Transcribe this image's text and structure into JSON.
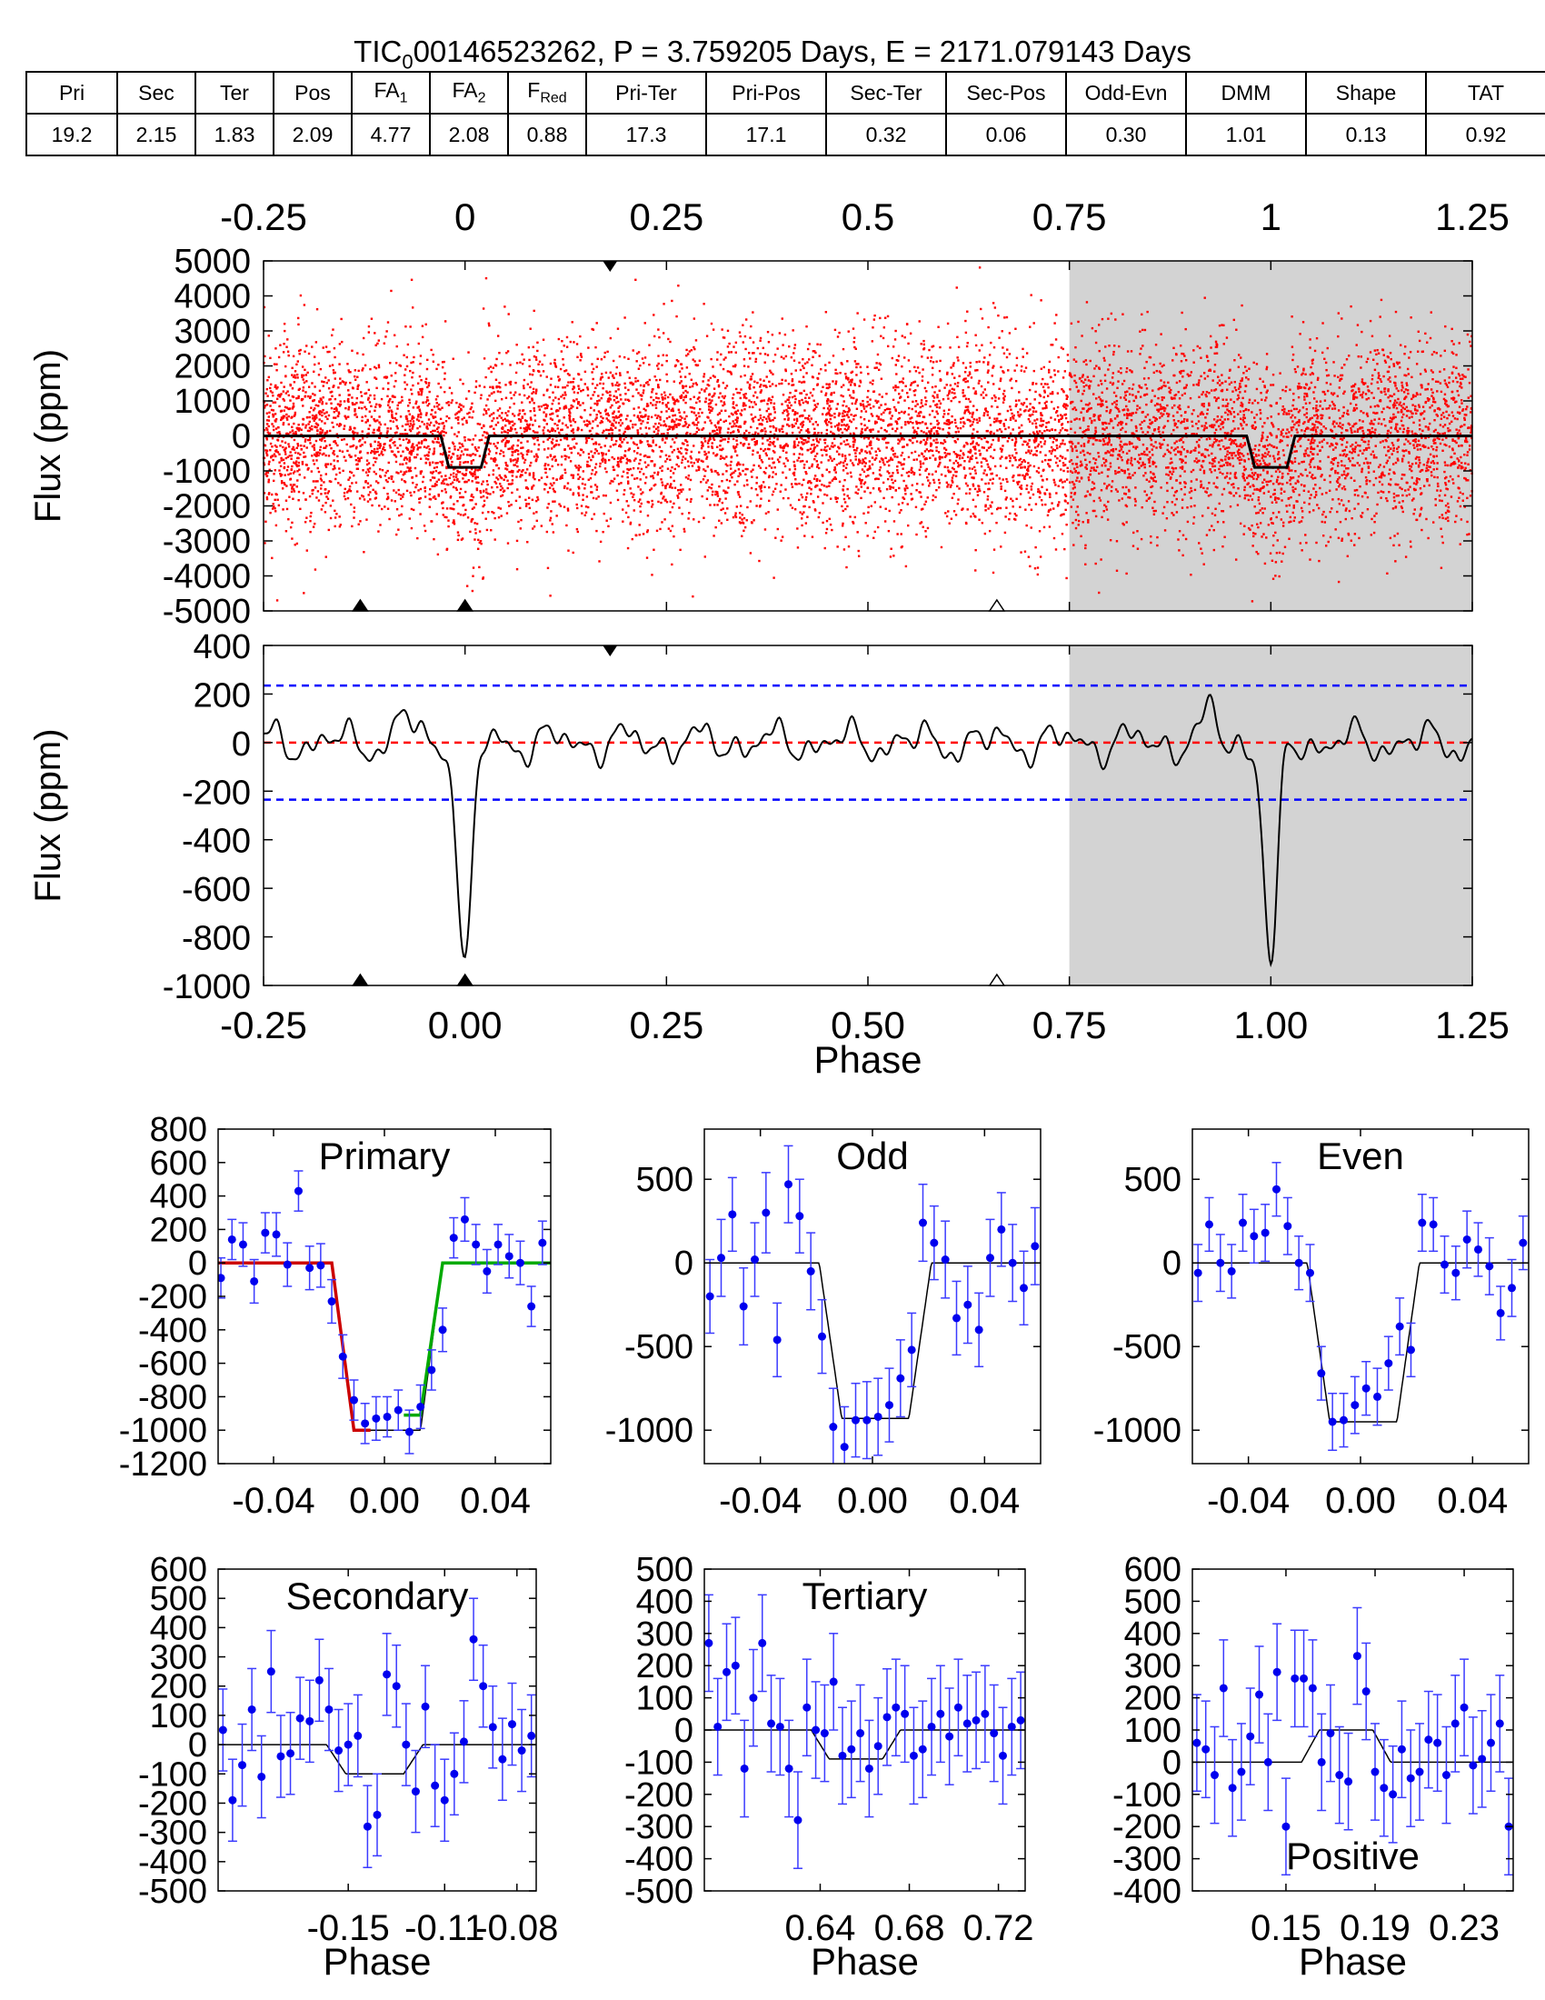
{
  "title": {
    "prefix": "TIC",
    "sub": "0",
    "rest": "00146523262, P = 3.759205 Days, E = 2171.079143 Days"
  },
  "metrics": {
    "headers": [
      {
        "main": "Pri",
        "sub": ""
      },
      {
        "main": "Sec",
        "sub": ""
      },
      {
        "main": "Ter",
        "sub": ""
      },
      {
        "main": "Pos",
        "sub": ""
      },
      {
        "main": "FA",
        "sub": "1"
      },
      {
        "main": "FA",
        "sub": "2"
      },
      {
        "main": "F",
        "sub": "Red"
      },
      {
        "main": "Pri-Ter",
        "sub": ""
      },
      {
        "main": "Pri-Pos",
        "sub": ""
      },
      {
        "main": "Sec-Ter",
        "sub": ""
      },
      {
        "main": "Sec-Pos",
        "sub": ""
      },
      {
        "main": "Odd-Evn",
        "sub": ""
      },
      {
        "main": "DMM",
        "sub": ""
      },
      {
        "main": "Shape",
        "sub": ""
      },
      {
        "main": "TAT",
        "sub": ""
      }
    ],
    "values": [
      "19.2",
      "2.15",
      "1.83",
      "2.09",
      "4.77",
      "2.08",
      "0.88",
      "17.3",
      "17.1",
      "0.32",
      "0.06",
      "0.30",
      "1.01",
      "0.13",
      "0.92"
    ]
  },
  "chart_data": [
    {
      "id": "full-phase",
      "type": "scatter",
      "ylabel": "Flux (ppm)",
      "xlim": [
        -0.25,
        1.25
      ],
      "ylim": [
        -5000,
        5000
      ],
      "top_ticks": [
        "-0.25",
        "0",
        "0.25",
        "0.5",
        "0.75",
        "1",
        "1.25"
      ],
      "top_tick_values": [
        -0.25,
        0,
        0.25,
        0.5,
        0.75,
        1,
        1.25
      ],
      "y_ticks": [
        5000,
        4000,
        3000,
        2000,
        1000,
        0,
        -1000,
        -2000,
        -3000,
        -4000,
        -5000
      ],
      "y_tick_labels": [
        "5000",
        "4000",
        "3000",
        "2000",
        "1000",
        "0",
        "-1000",
        "-2000",
        "-3000",
        "-4000",
        "-5000"
      ],
      "shaded_from": 0.75,
      "transit_depth": -900,
      "transit_center": 0.0,
      "transit_width": 0.06,
      "noise_sigma": 1500,
      "markers_bottom_filled": [
        -0.13,
        0.0
      ],
      "markers_bottom_open": [
        0.66
      ],
      "markers_top_filled": [
        0.18
      ],
      "point_color": "#ff0000",
      "model_color": "#000000"
    },
    {
      "id": "binned-phase",
      "type": "line",
      "xlabel": "Phase",
      "ylabel": "Flux (ppm)",
      "xlim": [
        -0.25,
        1.25
      ],
      "ylim": [
        -1000,
        400
      ],
      "x_ticks": [
        -0.25,
        0,
        0.25,
        0.5,
        0.75,
        1,
        1.25
      ],
      "x_tick_labels": [
        "-0.25",
        "0.00",
        "0.25",
        "0.50",
        "0.75",
        "1.00",
        "1.25"
      ],
      "y_ticks": [
        400,
        200,
        0,
        -200,
        -400,
        -600,
        -800,
        -1000
      ],
      "y_tick_labels": [
        "400",
        "200",
        "0",
        "-200",
        "-400",
        "-600",
        "-800",
        "-1000"
      ],
      "threshold": [
        235,
        -235
      ],
      "zero_line": 0,
      "transit_min": -940,
      "shaded_from": 0.75,
      "markers_bottom_filled": [
        -0.13,
        0.0
      ],
      "markers_bottom_open": [
        0.66
      ],
      "markers_top_filled": [
        0.18
      ]
    },
    {
      "id": "primary",
      "type": "scatter",
      "label": "Primary",
      "xlim": [
        -0.06,
        0.06
      ],
      "ylim": [
        -1200,
        800
      ],
      "x_ticks": [
        -0.04,
        0,
        0.04
      ],
      "x_tick_labels": [
        "-0.04",
        "0.00",
        "0.04"
      ],
      "y_ticks": [
        800,
        600,
        400,
        200,
        0,
        -200,
        -400,
        -600,
        -800,
        -1000,
        -1200
      ],
      "y_tick_labels": [
        "800",
        "600",
        "400",
        "200",
        "0",
        "-200",
        "-400",
        "-600",
        "-800",
        "-1000",
        "-1200"
      ],
      "model": {
        "depth": -1000,
        "t1": -0.019,
        "t2": -0.011,
        "t3": 0.013,
        "t4": 0.021
      },
      "fit_left_color": "#cc0000",
      "fit_right_color": "#00aa00",
      "x": [
        -0.059,
        -0.055,
        -0.051,
        -0.047,
        -0.043,
        -0.039,
        -0.035,
        -0.031,
        -0.027,
        -0.023,
        -0.019,
        -0.015,
        -0.011,
        -0.007,
        -0.003,
        0.001,
        0.005,
        0.009,
        0.013,
        0.017,
        0.021,
        0.025,
        0.029,
        0.033,
        0.037,
        0.041,
        0.045,
        0.049,
        0.053,
        0.057
      ],
      "y": [
        -90,
        140,
        110,
        -110,
        180,
        170,
        -10,
        430,
        -30,
        -15,
        -230,
        -560,
        -820,
        -960,
        -930,
        -920,
        -880,
        -1010,
        -860,
        -640,
        -400,
        150,
        260,
        110,
        -50,
        110,
        40,
        0,
        -260,
        120
      ],
      "err": [
        120,
        120,
        130,
        130,
        120,
        130,
        130,
        120,
        130,
        130,
        130,
        130,
        120,
        120,
        130,
        120,
        120,
        130,
        130,
        120,
        130,
        120,
        130,
        120,
        130,
        120,
        130,
        130,
        120,
        130
      ]
    },
    {
      "id": "odd",
      "type": "scatter",
      "label": "Odd",
      "xlim": [
        -0.06,
        0.06
      ],
      "ylim": [
        -1200,
        800
      ],
      "x_ticks": [
        -0.04,
        0,
        0.04
      ],
      "x_tick_labels": [
        "-0.04",
        "0.00",
        "0.04"
      ],
      "y_ticks": [
        500,
        0,
        -500,
        -1000
      ],
      "y_tick_labels": [
        "500",
        "0",
        "-500",
        "-1000"
      ],
      "model": {
        "depth": -930,
        "t1": -0.019,
        "t2": -0.011,
        "t3": 0.013,
        "t4": 0.021
      },
      "x": [
        -0.058,
        -0.054,
        -0.05,
        -0.046,
        -0.042,
        -0.038,
        -0.034,
        -0.03,
        -0.026,
        -0.022,
        -0.018,
        -0.014,
        -0.01,
        -0.006,
        -0.002,
        0.002,
        0.006,
        0.01,
        0.014,
        0.018,
        0.022,
        0.026,
        0.03,
        0.034,
        0.038,
        0.042,
        0.046,
        0.05,
        0.054,
        0.058
      ],
      "y": [
        -200,
        30,
        290,
        -260,
        20,
        300,
        -460,
        470,
        280,
        -50,
        -440,
        -980,
        -1100,
        -940,
        -940,
        -920,
        -850,
        -690,
        -520,
        240,
        120,
        20,
        -330,
        -250,
        -400,
        30,
        200,
        0,
        -150,
        100
      ],
      "err": [
        220,
        230,
        220,
        230,
        220,
        240,
        220,
        230,
        220,
        230,
        220,
        230,
        240,
        220,
        230,
        230,
        220,
        230,
        220,
        230,
        220,
        230,
        220,
        230,
        220,
        230,
        220,
        230,
        220,
        230
      ]
    },
    {
      "id": "even",
      "type": "scatter",
      "label": "Even",
      "xlim": [
        -0.06,
        0.06
      ],
      "ylim": [
        -1200,
        800
      ],
      "x_ticks": [
        -0.04,
        0,
        0.04
      ],
      "x_tick_labels": [
        "-0.04",
        "0.00",
        "0.04"
      ],
      "y_ticks": [
        500,
        0,
        -500,
        -1000
      ],
      "y_tick_labels": [
        "500",
        "0",
        "-500",
        "-1000"
      ],
      "model": {
        "depth": -950,
        "t1": -0.019,
        "t2": -0.011,
        "t3": 0.013,
        "t4": 0.021
      },
      "x": [
        -0.058,
        -0.054,
        -0.05,
        -0.046,
        -0.042,
        -0.038,
        -0.034,
        -0.03,
        -0.026,
        -0.022,
        -0.018,
        -0.014,
        -0.01,
        -0.006,
        -0.002,
        0.002,
        0.006,
        0.01,
        0.014,
        0.018,
        0.022,
        0.026,
        0.03,
        0.034,
        0.038,
        0.042,
        0.046,
        0.05,
        0.054,
        0.058
      ],
      "y": [
        -60,
        230,
        0,
        -50,
        240,
        160,
        180,
        440,
        220,
        0,
        -60,
        -660,
        -950,
        -940,
        -850,
        -750,
        -800,
        -600,
        -380,
        -520,
        240,
        230,
        -10,
        -60,
        140,
        80,
        -20,
        -300,
        -150,
        120
      ],
      "err": [
        170,
        160,
        170,
        160,
        170,
        160,
        170,
        160,
        170,
        160,
        170,
        160,
        170,
        160,
        170,
        160,
        170,
        160,
        170,
        160,
        170,
        160,
        170,
        160,
        170,
        160,
        170,
        160,
        170,
        160
      ]
    },
    {
      "id": "secondary",
      "type": "scatter",
      "label": "Secondary",
      "xlabel": "Phase",
      "xlim": [
        -0.204,
        -0.072
      ],
      "ylim": [
        -500,
        600
      ],
      "x_ticks": [
        -0.15,
        -0.11,
        -0.08
      ],
      "x_tick_labels": [
        "-0.15",
        "-0.11",
        "-0.08"
      ],
      "y_ticks": [
        600,
        500,
        400,
        300,
        200,
        100,
        0,
        -100,
        -200,
        -300,
        -400,
        -500
      ],
      "y_tick_labels": [
        "600",
        "500",
        "400",
        "300",
        "200",
        "100",
        "0",
        "-100",
        "-200",
        "-300",
        "-400",
        "-500"
      ],
      "model": {
        "depth": -100,
        "t1": -0.159,
        "t2": -0.151,
        "t3": -0.127,
        "t4": -0.119
      },
      "x": [
        -0.202,
        -0.198,
        -0.194,
        -0.19,
        -0.186,
        -0.182,
        -0.178,
        -0.174,
        -0.17,
        -0.166,
        -0.162,
        -0.158,
        -0.154,
        -0.15,
        -0.146,
        -0.142,
        -0.138,
        -0.134,
        -0.13,
        -0.126,
        -0.122,
        -0.118,
        -0.114,
        -0.11,
        -0.106,
        -0.102,
        -0.098,
        -0.094,
        -0.09,
        -0.086,
        -0.082,
        -0.078,
        -0.074
      ],
      "y": [
        50,
        -190,
        -70,
        120,
        -110,
        250,
        -40,
        -30,
        90,
        80,
        220,
        120,
        -20,
        0,
        30,
        -280,
        -240,
        240,
        200,
        0,
        -160,
        130,
        -140,
        -190,
        -100,
        10,
        360,
        200,
        60,
        -50,
        70,
        -20,
        30
      ],
      "err": [
        140,
        140,
        140,
        140,
        140,
        140,
        140,
        140,
        140,
        140,
        140,
        140,
        140,
        140,
        140,
        140,
        140,
        140,
        140,
        140,
        140,
        140,
        140,
        140,
        140,
        140,
        140,
        140,
        140,
        140,
        140,
        140,
        140
      ]
    },
    {
      "id": "tertiary",
      "type": "scatter",
      "label": "Tertiary",
      "xlabel": "Phase",
      "xlim": [
        0.588,
        0.732
      ],
      "ylim": [
        -500,
        500
      ],
      "x_ticks": [
        0.64,
        0.68,
        0.72
      ],
      "x_tick_labels": [
        "0.64",
        "0.68",
        "0.72"
      ],
      "y_ticks": [
        500,
        400,
        300,
        200,
        100,
        0,
        -100,
        -200,
        -300,
        -400,
        -500
      ],
      "y_tick_labels": [
        "500",
        "400",
        "300",
        "200",
        "100",
        "0",
        "-100",
        "-200",
        "-300",
        "-400",
        "-500"
      ],
      "model": {
        "depth": -90,
        "t1": 0.636,
        "t2": 0.644,
        "t3": 0.668,
        "t4": 0.676
      },
      "x": [
        0.59,
        0.594,
        0.598,
        0.602,
        0.606,
        0.61,
        0.614,
        0.618,
        0.622,
        0.626,
        0.63,
        0.634,
        0.638,
        0.642,
        0.646,
        0.65,
        0.654,
        0.658,
        0.662,
        0.666,
        0.67,
        0.674,
        0.678,
        0.682,
        0.686,
        0.69,
        0.694,
        0.698,
        0.702,
        0.706,
        0.71,
        0.714,
        0.718,
        0.722,
        0.726,
        0.73
      ],
      "y": [
        270,
        10,
        180,
        200,
        -120,
        100,
        270,
        20,
        10,
        -120,
        -280,
        70,
        0,
        -10,
        150,
        -80,
        -60,
        -10,
        -120,
        -50,
        40,
        70,
        50,
        -80,
        -60,
        10,
        50,
        -20,
        70,
        20,
        30,
        50,
        -10,
        -80,
        10,
        30
      ],
      "err": [
        150,
        150,
        150,
        150,
        150,
        150,
        150,
        150,
        150,
        150,
        150,
        150,
        150,
        150,
        150,
        150,
        150,
        150,
        150,
        150,
        150,
        150,
        150,
        150,
        150,
        150,
        150,
        150,
        150,
        150,
        150,
        150,
        150,
        150,
        150,
        150
      ]
    },
    {
      "id": "positive",
      "type": "scatter",
      "label": "Positive",
      "xlabel": "Phase",
      "xlim": [
        0.108,
        0.252
      ],
      "ylim": [
        -400,
        600
      ],
      "x_ticks": [
        0.15,
        0.19,
        0.23
      ],
      "x_tick_labels": [
        "0.15",
        "0.19",
        "0.23"
      ],
      "y_ticks": [
        600,
        500,
        400,
        300,
        200,
        100,
        0,
        -100,
        -200,
        -300,
        -400
      ],
      "y_tick_labels": [
        "600",
        "500",
        "400",
        "300",
        "200",
        "100",
        "0",
        "-100",
        "-200",
        "-300",
        "-400"
      ],
      "label_position": "bottom",
      "model": {
        "depth": 100,
        "t1": 0.157,
        "t2": 0.165,
        "t3": 0.189,
        "t4": 0.197
      },
      "x": [
        0.11,
        0.114,
        0.118,
        0.122,
        0.126,
        0.13,
        0.134,
        0.138,
        0.142,
        0.146,
        0.15,
        0.154,
        0.158,
        0.162,
        0.166,
        0.17,
        0.174,
        0.178,
        0.182,
        0.186,
        0.19,
        0.194,
        0.198,
        0.202,
        0.206,
        0.21,
        0.214,
        0.218,
        0.222,
        0.226,
        0.23,
        0.234,
        0.238,
        0.242,
        0.246,
        0.25
      ],
      "y": [
        60,
        40,
        -40,
        230,
        -80,
        -30,
        80,
        210,
        0,
        280,
        -200,
        260,
        260,
        230,
        0,
        90,
        -40,
        -60,
        330,
        220,
        -30,
        -80,
        -100,
        40,
        -50,
        -30,
        70,
        60,
        -40,
        120,
        170,
        -10,
        10,
        60,
        120,
        -200
      ],
      "err": [
        150,
        150,
        150,
        150,
        150,
        150,
        150,
        150,
        150,
        150,
        150,
        150,
        150,
        150,
        150,
        150,
        150,
        150,
        150,
        150,
        150,
        150,
        150,
        150,
        150,
        150,
        150,
        150,
        150,
        150,
        150,
        150,
        150,
        150,
        150,
        150
      ]
    }
  ]
}
